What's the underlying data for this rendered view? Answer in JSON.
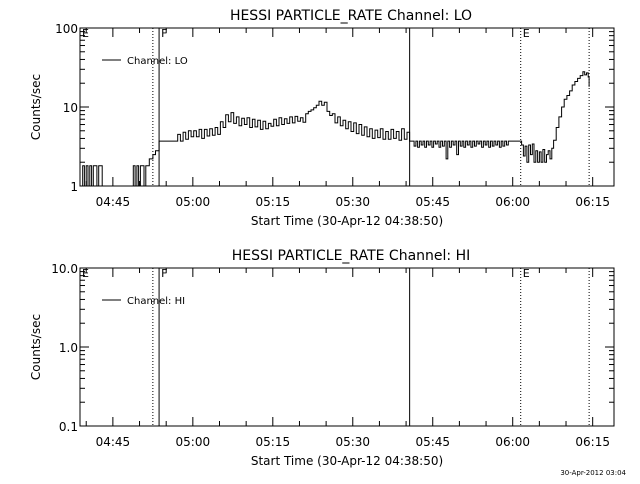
{
  "footer": {
    "stamp": "30-Apr-2012 03:04"
  },
  "chart_data": [
    {
      "type": "line",
      "title": "HESSI PARTICLE_RATE Channel: LO",
      "xlabel": "Start Time (30-Apr-12 04:38:50)",
      "ylabel": "Counts/sec",
      "yscale": "log",
      "ylim": [
        1,
        100
      ],
      "yticks": [
        {
          "value": 1,
          "label": "1"
        },
        {
          "value": 10,
          "label": "10"
        },
        {
          "value": 100,
          "label": "100"
        }
      ],
      "xlim": [
        "04:38:50",
        "06:19:00"
      ],
      "xticks": [
        "04:45",
        "05:00",
        "05:15",
        "05:30",
        "05:45",
        "06:00",
        "06:15"
      ],
      "legend": {
        "location": "top-left",
        "entries": [
          "Channel: LO"
        ]
      },
      "markers": [
        {
          "time": "04:38:50",
          "label": "E",
          "style": "none"
        },
        {
          "time": "04:52:30",
          "label": "",
          "style": "dotted"
        },
        {
          "time": "04:53:40",
          "label": "F",
          "style": "solid"
        },
        {
          "time": "05:40:40",
          "label": "",
          "style": "solid"
        },
        {
          "time": "06:01:30",
          "label": "E",
          "style": "dotted"
        },
        {
          "time": "06:14:20",
          "label": "",
          "style": "dotted"
        }
      ],
      "series": [
        {
          "name": "Channel: LO",
          "points": [
            [
              "04:39:00",
              1
            ],
            [
              "04:39:20",
              1.8
            ],
            [
              "04:39:40",
              1
            ],
            [
              "04:40:00",
              1.8
            ],
            [
              "04:40:20",
              1
            ],
            [
              "04:40:40",
              1.8
            ],
            [
              "04:41:00",
              1
            ],
            [
              "04:41:20",
              1.8
            ],
            [
              "04:41:40",
              1.8
            ],
            [
              "04:42:00",
              1
            ],
            [
              "04:42:20",
              1.8
            ],
            [
              "04:42:40",
              1.8
            ],
            [
              "04:43:00",
              1
            ],
            [
              "04:48:30",
              1
            ],
            [
              "04:48:50",
              1.8
            ],
            [
              "04:49:10",
              1
            ],
            [
              "04:49:30",
              1.8
            ],
            [
              "04:49:50",
              1
            ],
            [
              "04:50:10",
              1.8
            ],
            [
              "04:50:30",
              1.8
            ],
            [
              "04:50:50",
              1
            ],
            [
              "04:51:10",
              1.8
            ],
            [
              "04:51:30",
              1.8
            ],
            [
              "04:51:50",
              2.2
            ],
            [
              "04:52:30",
              2.5
            ],
            [
              "04:53:00",
              2.8
            ],
            [
              "04:53:40",
              3.7
            ],
            [
              "04:54:30",
              3.7
            ],
            [
              "04:55:30",
              3.7
            ],
            [
              "04:56:30",
              3.7
            ],
            [
              "04:57:10",
              4.5
            ],
            [
              "04:57:40",
              3.7
            ],
            [
              "04:58:10",
              4.8
            ],
            [
              "04:58:40",
              3.9
            ],
            [
              "04:59:10",
              5
            ],
            [
              "04:59:40",
              4.2
            ],
            [
              "05:00:10",
              5
            ],
            [
              "05:00:40",
              4.2
            ],
            [
              "05:01:10",
              5.2
            ],
            [
              "05:01:40",
              4
            ],
            [
              "05:02:10",
              5.2
            ],
            [
              "05:02:40",
              4.3
            ],
            [
              "05:03:10",
              5.3
            ],
            [
              "05:03:40",
              4.4
            ],
            [
              "05:04:10",
              5.5
            ],
            [
              "05:04:40",
              4.5
            ],
            [
              "05:05:10",
              6.5
            ],
            [
              "05:05:40",
              5.5
            ],
            [
              "05:06:10",
              8
            ],
            [
              "05:06:40",
              6.5
            ],
            [
              "05:07:10",
              8.5
            ],
            [
              "05:07:40",
              6.2
            ],
            [
              "05:08:10",
              7.5
            ],
            [
              "05:08:40",
              5.8
            ],
            [
              "05:09:10",
              7.2
            ],
            [
              "05:09:40",
              6
            ],
            [
              "05:10:10",
              7.3
            ],
            [
              "05:10:40",
              5.5
            ],
            [
              "05:11:10",
              7
            ],
            [
              "05:11:40",
              5.6
            ],
            [
              "05:12:10",
              6.8
            ],
            [
              "05:12:40",
              5.2
            ],
            [
              "05:13:10",
              6.6
            ],
            [
              "05:13:40",
              5.3
            ],
            [
              "05:14:10",
              6.2
            ],
            [
              "05:14:40",
              5.7
            ],
            [
              "05:15:10",
              7
            ],
            [
              "05:15:40",
              5.8
            ],
            [
              "05:16:10",
              7.3
            ],
            [
              "05:16:40",
              6
            ],
            [
              "05:17:10",
              7.1
            ],
            [
              "05:17:40",
              6.2
            ],
            [
              "05:18:10",
              7.5
            ],
            [
              "05:18:40",
              6.3
            ],
            [
              "05:19:10",
              7.6
            ],
            [
              "05:19:40",
              6.6
            ],
            [
              "05:20:10",
              7.3
            ],
            [
              "05:20:40",
              6.4
            ],
            [
              "05:21:10",
              8.2
            ],
            [
              "05:21:40",
              8.8
            ],
            [
              "05:22:10",
              9.2
            ],
            [
              "05:22:40",
              9.8
            ],
            [
              "05:23:10",
              10.5
            ],
            [
              "05:23:40",
              11.8
            ],
            [
              "05:24:10",
              10.5
            ],
            [
              "05:24:40",
              11.5
            ],
            [
              "05:25:10",
              8.8
            ],
            [
              "05:25:40",
              7.8
            ],
            [
              "05:26:10",
              8.2
            ],
            [
              "05:26:40",
              6.3
            ],
            [
              "05:27:10",
              7.5
            ],
            [
              "05:27:40",
              5.8
            ],
            [
              "05:28:10",
              6.8
            ],
            [
              "05:28:40",
              5.3
            ],
            [
              "05:29:10",
              6.5
            ],
            [
              "05:29:40",
              4.9
            ],
            [
              "05:30:10",
              6.3
            ],
            [
              "05:30:40",
              4.6
            ],
            [
              "05:31:10",
              6
            ],
            [
              "05:31:40",
              4.4
            ],
            [
              "05:32:10",
              5.6
            ],
            [
              "05:32:40",
              4.2
            ],
            [
              "05:33:10",
              5.3
            ],
            [
              "05:33:40",
              4
            ],
            [
              "05:34:10",
              5.1
            ],
            [
              "05:34:40",
              4.1
            ],
            [
              "05:35:10",
              5.3
            ],
            [
              "05:35:40",
              3.9
            ],
            [
              "05:36:10",
              4.9
            ],
            [
              "05:36:40",
              3.9
            ],
            [
              "05:37:10",
              5.2
            ],
            [
              "05:37:40",
              4
            ],
            [
              "05:38:10",
              4.9
            ],
            [
              "05:38:40",
              3.8
            ],
            [
              "05:39:10",
              5.3
            ],
            [
              "05:39:40",
              3.9
            ],
            [
              "05:40:10",
              4.8
            ],
            [
              "05:40:40",
              3.7
            ],
            [
              "05:41:10",
              3.7
            ],
            [
              "05:41:30",
              3.2
            ],
            [
              "05:41:50",
              3.7
            ],
            [
              "05:42:10",
              3.1
            ],
            [
              "05:42:30",
              3.7
            ],
            [
              "05:42:50",
              3.3
            ],
            [
              "05:43:10",
              3.7
            ],
            [
              "05:43:30",
              3.1
            ],
            [
              "05:43:50",
              3.7
            ],
            [
              "05:44:10",
              3.3
            ],
            [
              "05:44:30",
              3.7
            ],
            [
              "05:44:50",
              3.1
            ],
            [
              "05:45:10",
              3.7
            ],
            [
              "05:45:30",
              3.4
            ],
            [
              "05:45:50",
              3.7
            ],
            [
              "05:46:10",
              3.1
            ],
            [
              "05:46:30",
              3.7
            ],
            [
              "05:46:50",
              3.2
            ],
            [
              "05:47:10",
              3.7
            ],
            [
              "05:47:30",
              2.2
            ],
            [
              "05:47:50",
              3.7
            ],
            [
              "05:48:10",
              3.1
            ],
            [
              "05:48:30",
              3.7
            ],
            [
              "05:48:50",
              3.3
            ],
            [
              "05:49:10",
              3.7
            ],
            [
              "05:49:30",
              2.5
            ],
            [
              "05:49:50",
              3.7
            ],
            [
              "05:50:10",
              3.2
            ],
            [
              "05:50:30",
              3.7
            ],
            [
              "05:50:50",
              3.1
            ],
            [
              "05:51:10",
              3.7
            ],
            [
              "05:51:30",
              3.3
            ],
            [
              "05:51:50",
              3.7
            ],
            [
              "05:52:10",
              3.1
            ],
            [
              "05:52:30",
              3.7
            ],
            [
              "05:52:50",
              3.2
            ],
            [
              "05:53:10",
              3.7
            ],
            [
              "05:53:30",
              3.4
            ],
            [
              "05:53:50",
              3.7
            ],
            [
              "05:54:10",
              3.1
            ],
            [
              "05:54:30",
              3.7
            ],
            [
              "05:54:50",
              3.3
            ],
            [
              "05:55:10",
              3.7
            ],
            [
              "05:55:30",
              3.1
            ],
            [
              "05:55:50",
              3.7
            ],
            [
              "05:56:10",
              3.2
            ],
            [
              "05:56:30",
              3.7
            ],
            [
              "05:56:50",
              3.3
            ],
            [
              "05:57:10",
              3.7
            ],
            [
              "05:57:30",
              3.1
            ],
            [
              "05:57:50",
              3.7
            ],
            [
              "05:58:10",
              3.2
            ],
            [
              "05:58:30",
              3.7
            ],
            [
              "05:58:50",
              3.3
            ],
            [
              "05:59:10",
              3.7
            ],
            [
              "05:59:30",
              3.7
            ],
            [
              "06:00:00",
              3.7
            ],
            [
              "06:00:40",
              3.7
            ],
            [
              "06:01:20",
              3.7
            ],
            [
              "06:01:40",
              3.3
            ],
            [
              "06:02:00",
              2.4
            ],
            [
              "06:02:20",
              3.2
            ],
            [
              "06:02:40",
              2
            ],
            [
              "06:03:00",
              3.3
            ],
            [
              "06:03:20",
              2.5
            ],
            [
              "06:03:40",
              3.4
            ],
            [
              "06:04:00",
              2
            ],
            [
              "06:04:20",
              2.8
            ],
            [
              "06:04:40",
              2
            ],
            [
              "06:05:00",
              2.7
            ],
            [
              "06:05:20",
              2
            ],
            [
              "06:05:40",
              2.9
            ],
            [
              "06:06:00",
              2
            ],
            [
              "06:06:20",
              2.5
            ],
            [
              "06:06:40",
              2.8
            ],
            [
              "06:07:00",
              2.2
            ],
            [
              "06:07:20",
              3
            ],
            [
              "06:07:40",
              3.8
            ],
            [
              "06:08:10",
              5.5
            ],
            [
              "06:08:40",
              7.5
            ],
            [
              "06:09:10",
              10
            ],
            [
              "06:09:40",
              12.5
            ],
            [
              "06:10:10",
              14
            ],
            [
              "06:10:40",
              16
            ],
            [
              "06:11:10",
              19
            ],
            [
              "06:11:40",
              21
            ],
            [
              "06:12:10",
              23
            ],
            [
              "06:12:40",
              25
            ],
            [
              "06:13:10",
              28
            ],
            [
              "06:13:30",
              25.5
            ],
            [
              "06:13:50",
              27
            ],
            [
              "06:14:10",
              24
            ],
            [
              "06:14:20",
              18
            ]
          ]
        }
      ]
    },
    {
      "type": "line",
      "title": "HESSI PARTICLE_RATE Channel: HI",
      "xlabel": "Start Time (30-Apr-12 04:38:50)",
      "ylabel": "Counts/sec",
      "yscale": "log",
      "ylim": [
        0.1,
        10
      ],
      "yticks": [
        {
          "value": 0.1,
          "label": "0.1"
        },
        {
          "value": 1,
          "label": "1.0"
        },
        {
          "value": 10,
          "label": "10.0"
        }
      ],
      "xlim": [
        "04:38:50",
        "06:19:00"
      ],
      "xticks": [
        "04:45",
        "05:00",
        "05:15",
        "05:30",
        "05:45",
        "06:00",
        "06:15"
      ],
      "legend": {
        "location": "top-left",
        "entries": [
          "Channel: HI"
        ]
      },
      "markers": [
        {
          "time": "04:38:50",
          "label": "E",
          "style": "none"
        },
        {
          "time": "04:52:30",
          "label": "",
          "style": "dotted"
        },
        {
          "time": "04:53:40",
          "label": "F",
          "style": "solid"
        },
        {
          "time": "05:40:40",
          "label": "",
          "style": "solid"
        },
        {
          "time": "06:01:30",
          "label": "E",
          "style": "dotted"
        },
        {
          "time": "06:14:20",
          "label": "",
          "style": "dotted"
        }
      ],
      "series": [
        {
          "name": "Channel: HI",
          "points": []
        }
      ]
    }
  ]
}
